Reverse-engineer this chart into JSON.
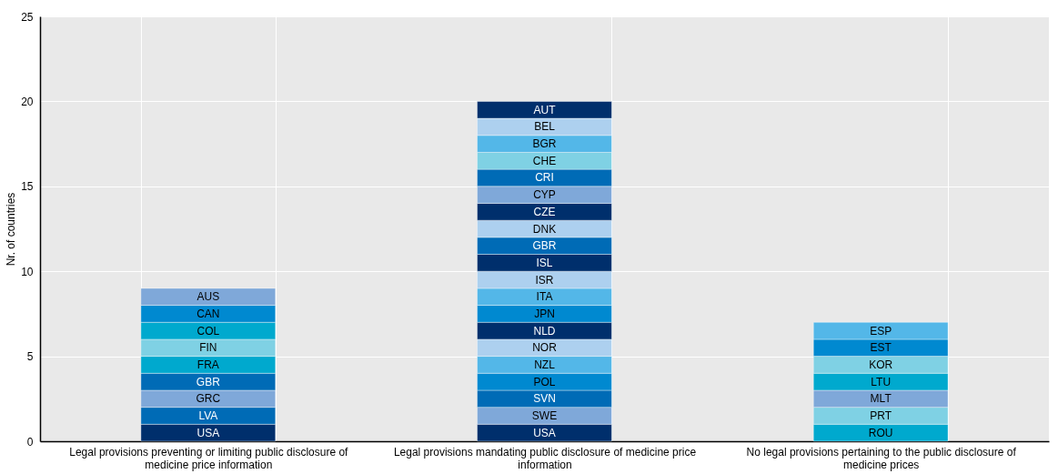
{
  "chart_data": {
    "type": "bar",
    "stacked": true,
    "ylabel": "Nr. of countries",
    "ylim": [
      0,
      25
    ],
    "yticks": [
      0,
      5,
      10,
      15,
      20,
      25
    ],
    "grid": true,
    "categories": [
      "Legal provisions preventing or limiting public disclosure of medicine price information",
      "Legal provisions mandating public disclosure of medicine price information",
      "No legal provisions pertaining to the public disclosure of medicine prices"
    ],
    "series": [
      {
        "values": [
          1,
          1,
          1
        ],
        "colors": [
          "#002f6c",
          "#002f6c",
          "#00a9ce"
        ],
        "value_labels": [
          "USA",
          "USA",
          "ROU"
        ]
      },
      {
        "values": [
          1,
          1,
          1
        ],
        "colors": [
          "#006bb6",
          "#7fa8d9",
          "#7fd1e4"
        ],
        "value_labels": [
          "LVA",
          "SWE",
          "PRT"
        ]
      },
      {
        "values": [
          1,
          1,
          1
        ],
        "colors": [
          "#7fa8d9",
          "#006bb6",
          "#7fa8d9"
        ],
        "value_labels": [
          "GRC",
          "SVN",
          "MLT"
        ]
      },
      {
        "values": [
          1,
          1,
          1
        ],
        "colors": [
          "#006bb6",
          "#0089d0",
          "#00a9ce"
        ],
        "value_labels": [
          "GBR",
          "POL",
          "LTU"
        ]
      },
      {
        "values": [
          1,
          1,
          1
        ],
        "colors": [
          "#00a9ce",
          "#53b7e8",
          "#7fd1e4"
        ],
        "value_labels": [
          "FRA",
          "NZL",
          "KOR"
        ]
      },
      {
        "values": [
          1,
          1,
          1
        ],
        "colors": [
          "#7fd1e4",
          "#add0ef",
          "#0089d0"
        ],
        "value_labels": [
          "FIN",
          "NOR",
          "EST"
        ]
      },
      {
        "values": [
          1,
          1,
          1
        ],
        "colors": [
          "#00a9ce",
          "#002f6c",
          "#53b7e8"
        ],
        "value_labels": [
          "COL",
          "NLD",
          "ESP"
        ]
      },
      {
        "values": [
          1,
          1,
          null
        ],
        "colors": [
          "#0089d0",
          "#0089d0",
          null
        ],
        "value_labels": [
          "CAN",
          "JPN",
          null
        ]
      },
      {
        "values": [
          1,
          1,
          null
        ],
        "colors": [
          "#7fa8d9",
          "#53b7e8",
          null
        ],
        "value_labels": [
          "AUS",
          "ITA",
          null
        ]
      },
      {
        "values": [
          null,
          1,
          null
        ],
        "colors": [
          null,
          "#add0ef",
          null
        ],
        "value_labels": [
          null,
          "ISR",
          null
        ]
      },
      {
        "values": [
          null,
          1,
          null
        ],
        "colors": [
          null,
          "#002f6c",
          null
        ],
        "value_labels": [
          null,
          "ISL",
          null
        ]
      },
      {
        "values": [
          null,
          1,
          null
        ],
        "colors": [
          null,
          "#006bb6",
          null
        ],
        "value_labels": [
          null,
          "GBR",
          null
        ]
      },
      {
        "values": [
          null,
          1,
          null
        ],
        "colors": [
          null,
          "#add0ef",
          null
        ],
        "value_labels": [
          null,
          "DNK",
          null
        ]
      },
      {
        "values": [
          null,
          1,
          null
        ],
        "colors": [
          null,
          "#002f6c",
          null
        ],
        "value_labels": [
          null,
          "CZE",
          null
        ]
      },
      {
        "values": [
          null,
          1,
          null
        ],
        "colors": [
          null,
          "#7fa8d9",
          null
        ],
        "value_labels": [
          null,
          "CYP",
          null
        ]
      },
      {
        "values": [
          null,
          1,
          null
        ],
        "colors": [
          null,
          "#006bb6",
          null
        ],
        "value_labels": [
          null,
          "CRI",
          null
        ]
      },
      {
        "values": [
          null,
          1,
          null
        ],
        "colors": [
          null,
          "#7fd1e4",
          null
        ],
        "value_labels": [
          null,
          "CHE",
          null
        ]
      },
      {
        "values": [
          null,
          1,
          null
        ],
        "colors": [
          null,
          "#53b7e8",
          null
        ],
        "value_labels": [
          null,
          "BGR",
          null
        ]
      },
      {
        "values": [
          null,
          1,
          null
        ],
        "colors": [
          null,
          "#add0ef",
          null
        ],
        "value_labels": [
          null,
          "BEL",
          null
        ]
      },
      {
        "values": [
          null,
          1,
          null
        ],
        "colors": [
          null,
          "#002f6c",
          null
        ],
        "value_labels": [
          null,
          "AUT",
          null
        ]
      }
    ]
  }
}
